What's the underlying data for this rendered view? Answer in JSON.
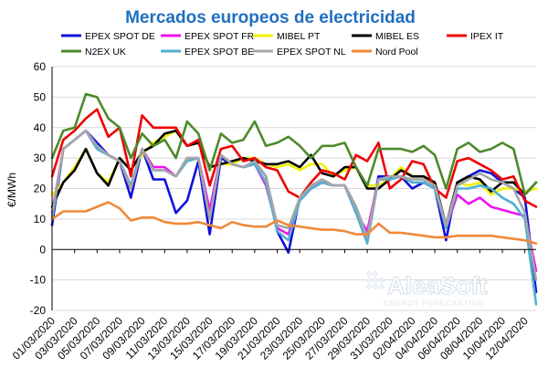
{
  "chart_data": {
    "type": "line",
    "title": "Mercados europeos de electricidad",
    "ylabel": "€/MWh",
    "xlabel": "",
    "ylim": [
      -20,
      60
    ],
    "yticks": [
      -20,
      -10,
      0,
      10,
      20,
      30,
      40,
      50,
      60
    ],
    "grid": true,
    "legend_position": "top",
    "watermark": {
      "brand": "AleaSoft",
      "tagline": "ENERGY FORECASTING"
    },
    "x": [
      "01/03/2020",
      "02/03/2020",
      "03/03/2020",
      "04/03/2020",
      "05/03/2020",
      "06/03/2020",
      "07/03/2020",
      "08/03/2020",
      "09/03/2020",
      "10/03/2020",
      "11/03/2020",
      "12/03/2020",
      "13/03/2020",
      "14/03/2020",
      "15/03/2020",
      "16/03/2020",
      "17/03/2020",
      "18/03/2020",
      "19/03/2020",
      "20/03/2020",
      "21/03/2020",
      "22/03/2020",
      "23/03/2020",
      "24/03/2020",
      "25/03/2020",
      "26/03/2020",
      "27/03/2020",
      "28/03/2020",
      "29/03/2020",
      "30/03/2020",
      "31/03/2020",
      "01/04/2020",
      "02/04/2020",
      "03/04/2020",
      "04/04/2020",
      "05/04/2020",
      "06/04/2020",
      "07/04/2020",
      "08/04/2020",
      "09/04/2020",
      "10/04/2020",
      "11/04/2020",
      "12/04/2020",
      "13/04/2020"
    ],
    "x_tick_labels": [
      "01/03/2020",
      "03/03/2020",
      "05/03/2020",
      "07/03/2020",
      "09/03/2020",
      "11/03/2020",
      "13/03/2020",
      "15/03/2020",
      "17/03/2020",
      "19/03/2020",
      "21/03/2020",
      "23/03/2020",
      "25/03/2020",
      "27/03/2020",
      "29/03/2020",
      "31/03/2020",
      "02/04/2020",
      "04/04/2020",
      "06/04/2020",
      "08/04/2020",
      "10/04/2020",
      "12/04/2020"
    ],
    "series": [
      {
        "name": "EPEX SPOT DE",
        "color": "#1010dd",
        "values": [
          8,
          33,
          36,
          39,
          35,
          31,
          29,
          17,
          33,
          23,
          23,
          12,
          16,
          29,
          5,
          30,
          28,
          27,
          29,
          24,
          6,
          -1,
          17,
          20,
          22,
          21,
          21,
          14,
          4,
          24,
          24,
          24,
          20,
          22,
          20,
          3,
          22,
          24,
          26,
          25,
          22,
          20,
          17,
          -14
        ]
      },
      {
        "name": "EPEX SPOT FR",
        "color": "#f012f0",
        "values": [
          12,
          33,
          36,
          39,
          33,
          31,
          29,
          21,
          33,
          27,
          27,
          24,
          30,
          30,
          13,
          31,
          28,
          27,
          28,
          21,
          7,
          5,
          16,
          20,
          22,
          21,
          21,
          12,
          6,
          23,
          23,
          24,
          22,
          22,
          20,
          7,
          18,
          15,
          17,
          14,
          13,
          12,
          11,
          -7
        ]
      },
      {
        "name": "MIBEL PT",
        "color": "#f0f000",
        "values": [
          18,
          22,
          27,
          33,
          25,
          22,
          30,
          26,
          31,
          35,
          37,
          39,
          34,
          35,
          27,
          28,
          28,
          30,
          30,
          28,
          27,
          28,
          26,
          28,
          28,
          24,
          26,
          27,
          21,
          21,
          23,
          27,
          24,
          24,
          22,
          7,
          22,
          21,
          22,
          18,
          20,
          20,
          19,
          20
        ]
      },
      {
        "name": "MIBEL ES",
        "color": "#000000",
        "values": [
          14,
          22,
          26,
          33,
          25,
          21,
          30,
          26,
          32,
          34,
          38,
          39,
          34,
          35,
          27,
          28,
          29,
          30,
          29,
          28,
          28,
          29,
          27,
          31,
          25,
          24,
          27,
          27,
          20,
          20,
          23,
          26,
          24,
          24,
          22,
          8,
          22,
          24,
          23,
          19,
          22,
          22,
          18,
          22
        ]
      },
      {
        "name": "IPEX IT",
        "color": "#ee0000",
        "values": [
          24,
          36,
          39,
          43,
          46,
          37,
          40,
          24,
          44,
          40,
          40,
          40,
          34,
          36,
          21,
          33,
          34,
          29,
          30,
          27,
          26,
          19,
          17,
          22,
          26,
          25,
          23,
          31,
          29,
          35,
          20,
          23,
          29,
          28,
          20,
          17,
          29,
          30,
          28,
          26,
          23,
          24,
          16,
          14
        ]
      },
      {
        "name": "N2EX UK",
        "color": "#4d8a2a",
        "values": [
          30,
          39,
          40,
          51,
          50,
          43,
          40,
          30,
          38,
          34,
          36,
          30,
          42,
          38,
          26,
          38,
          35,
          36,
          42,
          34,
          35,
          37,
          34,
          30,
          34,
          34,
          35,
          27,
          21,
          33,
          33,
          33,
          32,
          34,
          31,
          20,
          33,
          35,
          32,
          33,
          35,
          33,
          18,
          22
        ]
      },
      {
        "name": "EPEX SPOT BE",
        "color": "#4fb0d0",
        "values": [
          10,
          33,
          36,
          39,
          33,
          31,
          29,
          21,
          33,
          26,
          26,
          24,
          29,
          30,
          10,
          31,
          28,
          27,
          28,
          22,
          6,
          3,
          16,
          20,
          22,
          21,
          21,
          12,
          2,
          23,
          23,
          24,
          22,
          22,
          20,
          7,
          20,
          20,
          21,
          20,
          17,
          15,
          10,
          -18
        ]
      },
      {
        "name": "EPEX SPOT NL",
        "color": "#a6a6a6",
        "values": [
          11,
          33,
          36,
          39,
          34,
          31,
          29,
          20,
          33,
          26,
          26,
          24,
          30,
          30,
          10,
          31,
          28,
          27,
          29,
          24,
          8,
          7,
          17,
          21,
          23,
          21,
          21,
          14,
          4,
          23,
          24,
          24,
          23,
          23,
          21,
          8,
          21,
          23,
          25,
          23,
          22,
          20,
          12,
          -10
        ]
      },
      {
        "name": "Nord Pool",
        "color": "#ef8a3a",
        "values": [
          10,
          12.5,
          12.5,
          12.5,
          14,
          15.5,
          13.5,
          9.5,
          10.5,
          10.5,
          9,
          8.5,
          8.5,
          9,
          8,
          7,
          9,
          8,
          7.5,
          7.5,
          9.5,
          8,
          7.5,
          7,
          6.5,
          6.5,
          6,
          5,
          5,
          8.5,
          5.5,
          5.5,
          5,
          4.5,
          4,
          4,
          4.5,
          4.5,
          4.5,
          4.5,
          4,
          3.5,
          3,
          2
        ]
      }
    ]
  }
}
